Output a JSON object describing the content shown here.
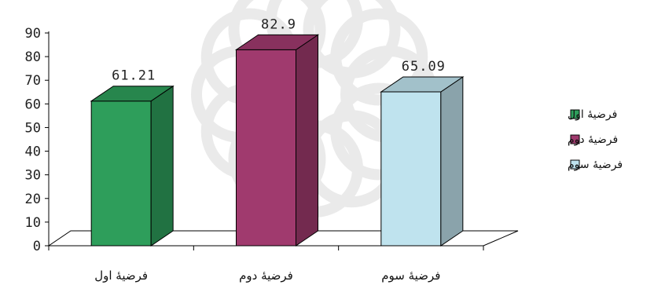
{
  "chart_data": {
    "type": "bar",
    "style": "3d-column",
    "categories": [
      "فرضيۀ اول",
      "فرضيۀ دوم",
      "فرضيۀ سوم"
    ],
    "values": [
      61.21,
      82.9,
      65.09
    ],
    "data_labels": [
      "61.21",
      "82.9",
      "65.09"
    ],
    "colors": [
      "#2e9e5b",
      "#a03a6e",
      "#bfe3ee"
    ],
    "legend": [
      "فرضيۀ اول",
      "فرضيۀ دوم",
      "فرضيۀ سوم"
    ],
    "legend_position": "right",
    "ylim": [
      0,
      90
    ],
    "yticks": [
      0,
      10,
      20,
      30,
      40,
      50,
      60,
      70,
      80,
      90
    ],
    "grid": false,
    "xlabel": "",
    "ylabel": "",
    "title": ""
  }
}
